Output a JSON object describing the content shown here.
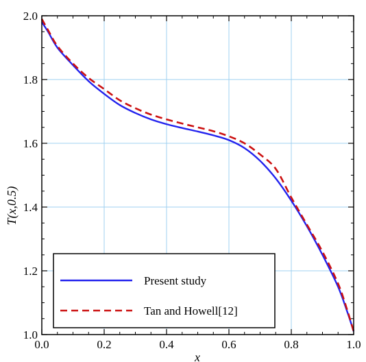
{
  "chart_data": {
    "type": "line",
    "xlabel": "x",
    "ylabel": "T(x,0.5)",
    "xlim": [
      0.0,
      1.0
    ],
    "ylim": [
      1.0,
      2.0
    ],
    "xticks": [
      0.0,
      0.2,
      0.4,
      0.6,
      0.8,
      1.0
    ],
    "yticks": [
      1.0,
      1.2,
      1.4,
      1.6,
      1.8,
      2.0
    ],
    "xtick_labels": [
      "0.0",
      "0.2",
      "0.4",
      "0.6",
      "0.8",
      "1.0"
    ],
    "ytick_labels": [
      "1.0",
      "1.2",
      "1.4",
      "1.6",
      "1.8",
      "2.0"
    ],
    "grid": true,
    "legend_position": "bottom-left",
    "series": [
      {
        "name": "Present study",
        "color": "#2222ee",
        "style": "solid",
        "x": [
          0.0,
          0.02,
          0.05,
          0.1,
          0.15,
          0.2,
          0.25,
          0.3,
          0.35,
          0.4,
          0.45,
          0.5,
          0.55,
          0.6,
          0.65,
          0.7,
          0.75,
          0.8,
          0.85,
          0.9,
          0.95,
          0.98,
          1.0
        ],
        "y": [
          1.98,
          1.95,
          1.9,
          1.845,
          1.795,
          1.755,
          1.72,
          1.695,
          1.675,
          1.66,
          1.648,
          1.637,
          1.625,
          1.61,
          1.585,
          1.545,
          1.49,
          1.42,
          1.34,
          1.25,
          1.15,
          1.07,
          1.01
        ]
      },
      {
        "name": "Tan and Howell[12]",
        "color": "#cc1111",
        "style": "dashed",
        "x": [
          0.0,
          0.02,
          0.05,
          0.1,
          0.15,
          0.2,
          0.25,
          0.3,
          0.35,
          0.4,
          0.45,
          0.5,
          0.55,
          0.6,
          0.65,
          0.7,
          0.75,
          0.8,
          0.85,
          0.9,
          0.95,
          0.98,
          1.0
        ],
        "y": [
          1.99,
          1.955,
          1.905,
          1.85,
          1.805,
          1.77,
          1.735,
          1.71,
          1.69,
          1.675,
          1.662,
          1.65,
          1.638,
          1.622,
          1.6,
          1.565,
          1.52,
          1.43,
          1.345,
          1.26,
          1.16,
          1.075,
          1.01
        ]
      }
    ]
  }
}
